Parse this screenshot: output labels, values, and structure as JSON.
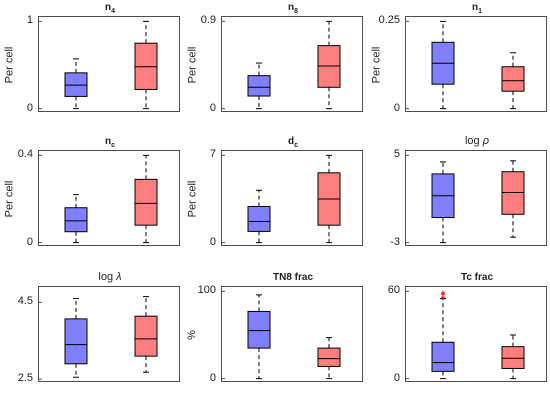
{
  "chart_data": [
    {
      "type": "box",
      "title_base": "n",
      "title_sub": "4",
      "title_style": "bold",
      "ylabel": "Per cell",
      "ylim": [
        -0.05,
        1.05
      ],
      "yticks": [
        {
          "v": 0,
          "label": "0"
        },
        {
          "v": 1,
          "label": "1"
        }
      ],
      "boxes": [
        {
          "color": "#7f7fff",
          "whislo": 0.0,
          "q1": 0.14,
          "med": 0.27,
          "q3": 0.41,
          "whishi": 0.57,
          "outliers": []
        },
        {
          "color": "#ff7f7f",
          "whislo": 0.0,
          "q1": 0.22,
          "med": 0.48,
          "q3": 0.75,
          "whishi": 1.0,
          "outliers": []
        }
      ]
    },
    {
      "type": "box",
      "title_base": "n",
      "title_sub": "8",
      "title_style": "bold",
      "ylabel": "Per cell",
      "ylim": [
        -0.045,
        0.945
      ],
      "yticks": [
        {
          "v": 0,
          "label": "0"
        },
        {
          "v": 0.9,
          "label": "0.9"
        }
      ],
      "boxes": [
        {
          "color": "#7f7fff",
          "whislo": 0.0,
          "q1": 0.13,
          "med": 0.22,
          "q3": 0.34,
          "whishi": 0.47,
          "outliers": []
        },
        {
          "color": "#ff7f7f",
          "whislo": 0.0,
          "q1": 0.22,
          "med": 0.44,
          "q3": 0.65,
          "whishi": 0.9,
          "outliers": []
        }
      ]
    },
    {
      "type": "box",
      "title_base": "n",
      "title_sub": "1",
      "title_style": "bold",
      "ylabel": "Per cell",
      "ylim": [
        -0.0125,
        0.2625
      ],
      "yticks": [
        {
          "v": 0,
          "label": "0"
        },
        {
          "v": 0.25,
          "label": "0.25"
        }
      ],
      "boxes": [
        {
          "color": "#7f7fff",
          "whislo": 0.0,
          "q1": 0.07,
          "med": 0.13,
          "q3": 0.19,
          "whishi": 0.25,
          "outliers": []
        },
        {
          "color": "#ff7f7f",
          "whislo": 0.0,
          "q1": 0.05,
          "med": 0.08,
          "q3": 0.12,
          "whishi": 0.16,
          "outliers": []
        }
      ]
    },
    {
      "type": "box",
      "title_base": "n",
      "title_sub": "c",
      "title_style": "bold",
      "ylabel": "Per cell",
      "ylim": [
        -0.02,
        0.42
      ],
      "yticks": [
        {
          "v": 0,
          "label": "0"
        },
        {
          "v": 0.4,
          "label": "0.4"
        }
      ],
      "boxes": [
        {
          "color": "#7f7fff",
          "whislo": 0.0,
          "q1": 0.05,
          "med": 0.1,
          "q3": 0.16,
          "whishi": 0.22,
          "outliers": []
        },
        {
          "color": "#ff7f7f",
          "whislo": 0.0,
          "q1": 0.08,
          "med": 0.18,
          "q3": 0.29,
          "whishi": 0.4,
          "outliers": []
        }
      ]
    },
    {
      "type": "box",
      "title_base": "d",
      "title_sub": "c",
      "title_style": "bold",
      "ylabel": "Per cell",
      "ylim": [
        -0.35,
        7.35
      ],
      "yticks": [
        {
          "v": 0,
          "label": "0"
        },
        {
          "v": 7,
          "label": "7"
        }
      ],
      "boxes": [
        {
          "color": "#7f7fff",
          "whislo": 0.0,
          "q1": 0.9,
          "med": 1.7,
          "q3": 2.9,
          "whishi": 4.2,
          "outliers": []
        },
        {
          "color": "#ff7f7f",
          "whislo": 0.0,
          "q1": 1.4,
          "med": 3.5,
          "q3": 5.6,
          "whishi": 7.0,
          "outliers": []
        }
      ]
    },
    {
      "type": "box",
      "title_base": "log",
      "title_greek": "ρ",
      "title_style": "normal",
      "ylabel": "",
      "ylim": [
        -3.4,
        5.4
      ],
      "yticks": [
        {
          "v": -3,
          "label": "-3"
        },
        {
          "v": 5,
          "label": "5"
        }
      ],
      "boxes": [
        {
          "color": "#7f7fff",
          "whislo": -3.0,
          "q1": -0.7,
          "med": 1.3,
          "q3": 3.3,
          "whishi": 4.4,
          "outliers": []
        },
        {
          "color": "#ff7f7f",
          "whislo": -2.5,
          "q1": -0.4,
          "med": 1.6,
          "q3": 3.5,
          "whishi": 4.5,
          "outliers": []
        }
      ]
    },
    {
      "type": "box",
      "title_base": "log",
      "title_greek": "λ",
      "title_style": "normal",
      "ylabel": "",
      "ylim": [
        2.4,
        4.9
      ],
      "yticks": [
        {
          "v": 2.5,
          "label": "2.5"
        },
        {
          "v": 4.5,
          "label": "4.5"
        }
      ],
      "boxes": [
        {
          "color": "#7f7fff",
          "whislo": 2.55,
          "q1": 2.9,
          "med": 3.4,
          "q3": 4.07,
          "whishi": 4.6,
          "outliers": []
        },
        {
          "color": "#ff7f7f",
          "whislo": 2.68,
          "q1": 3.1,
          "med": 3.55,
          "q3": 4.14,
          "whishi": 4.65,
          "outliers": []
        }
      ]
    },
    {
      "type": "box",
      "title_base": "TN8 frac",
      "title_style": "bold",
      "ylabel": "%",
      "ylim": [
        -5,
        105
      ],
      "yticks": [
        {
          "v": 0,
          "label": "0"
        },
        {
          "v": 100,
          "label": "100"
        }
      ],
      "boxes": [
        {
          "color": "#7f7fff",
          "whislo": 0,
          "q1": 35,
          "med": 55,
          "q3": 77,
          "whishi": 96,
          "outliers": []
        },
        {
          "color": "#ff7f7f",
          "whislo": 0,
          "q1": 14,
          "med": 23,
          "q3": 35,
          "whishi": 47,
          "outliers": []
        }
      ]
    },
    {
      "type": "box",
      "title_base": "Tc frac",
      "title_style": "bold",
      "ylabel": "",
      "ylim": [
        -3,
        63
      ],
      "yticks": [
        {
          "v": 0,
          "label": "0"
        },
        {
          "v": 60,
          "label": "60"
        }
      ],
      "boxes": [
        {
          "color": "#7f7fff",
          "whislo": 0,
          "q1": 5,
          "med": 11,
          "q3": 25,
          "whishi": 55,
          "outliers": [
            56,
            58,
            59
          ]
        },
        {
          "color": "#ff7f7f",
          "whislo": 0,
          "q1": 7,
          "med": 14,
          "q3": 22,
          "whishi": 30,
          "outliers": []
        }
      ]
    }
  ]
}
